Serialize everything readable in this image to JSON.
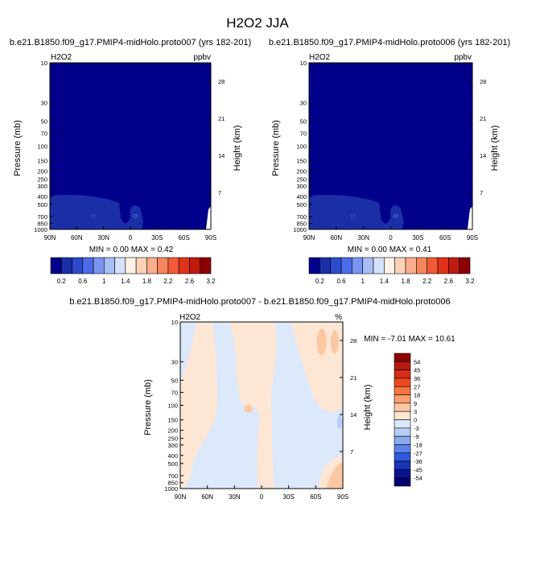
{
  "page_title": "H2O2 JJA",
  "chart_data": [
    {
      "type": "heatmap",
      "title": "b.e21.B1850.f09_g17.PMIP4-midHolo.proto007 (yrs 182-201)",
      "variable": "H2O2",
      "units": "ppbv",
      "xlabel": "",
      "ylabel": "Pressure (mb)",
      "ylabel_right": "Height (km)",
      "x_ticks": [
        "90N",
        "60N",
        "30N",
        "0",
        "30S",
        "60S",
        "90S"
      ],
      "y_ticks": [
        "10",
        "30",
        "50",
        "70",
        "100",
        "150",
        "200",
        "250",
        "300",
        "400",
        "500",
        "700",
        "850",
        "1000"
      ],
      "y_right_ticks": [
        "28",
        "21",
        "14",
        "7"
      ],
      "ylim": [
        1000,
        10
      ],
      "y_scale": "log",
      "stats": "MIN =   0.00   MAX =   0.42",
      "min": 0.0,
      "max": 0.42,
      "colorbar": {
        "labels": [
          "0.2",
          "0.6",
          "1",
          "1.4",
          "1.8",
          "2.2",
          "2.6",
          "3.2"
        ],
        "colors": [
          "#00008b",
          "#1a2fa6",
          "#2b4bcc",
          "#4d6be8",
          "#7a95f0",
          "#a8bff5",
          "#d4e2fa",
          "#fff2e6",
          "#fcd2b8",
          "#fbae8a",
          "#f7865e",
          "#f25a35",
          "#e0321a",
          "#c01a0e",
          "#8b0000"
        ]
      }
    },
    {
      "type": "heatmap",
      "title": "b.e21.B1850.f09_g17.PMIP4-midHolo.proto006 (yrs 182-201)",
      "variable": "H2O2",
      "units": "ppbv",
      "xlabel": "",
      "ylabel": "Pressure (mb)",
      "ylabel_right": "Height (km)",
      "x_ticks": [
        "90N",
        "60N",
        "30N",
        "0",
        "30S",
        "60S",
        "90S"
      ],
      "y_ticks": [
        "10",
        "30",
        "50",
        "70",
        "100",
        "150",
        "200",
        "250",
        "300",
        "400",
        "500",
        "700",
        "850",
        "1000"
      ],
      "y_right_ticks": [
        "28",
        "21",
        "14",
        "7"
      ],
      "ylim": [
        1000,
        10
      ],
      "y_scale": "log",
      "stats": "MIN =   0.00   MAX =   0.41",
      "min": 0.0,
      "max": 0.41,
      "colorbar": {
        "labels": [
          "0.2",
          "0.6",
          "1",
          "1.4",
          "1.8",
          "2.2",
          "2.6",
          "3.2"
        ],
        "colors": [
          "#00008b",
          "#1a2fa6",
          "#2b4bcc",
          "#4d6be8",
          "#7a95f0",
          "#a8bff5",
          "#d4e2fa",
          "#fff2e6",
          "#fcd2b8",
          "#fbae8a",
          "#f7865e",
          "#f25a35",
          "#e0321a",
          "#c01a0e",
          "#8b0000"
        ]
      }
    },
    {
      "type": "heatmap",
      "title": "b.e21.B1850.f09_g17.PMIP4-midHolo.proto007 - b.e21.B1850.f09_g17.PMIP4-midHolo.proto006",
      "variable": "H2O2",
      "units": "%",
      "xlabel": "",
      "ylabel": "Pressure (mb)",
      "ylabel_right": "Height (km)",
      "x_ticks": [
        "90N",
        "60N",
        "30N",
        "0",
        "30S",
        "60S",
        "90S"
      ],
      "y_ticks": [
        "10",
        "30",
        "50",
        "70",
        "100",
        "150",
        "200",
        "250",
        "300",
        "400",
        "500",
        "700",
        "850",
        "1000"
      ],
      "y_right_ticks": [
        "28",
        "21",
        "14",
        "7"
      ],
      "ylim": [
        1000,
        10
      ],
      "y_scale": "log",
      "stats": "MIN =  -7.01   MAX =  10.61",
      "min": -7.01,
      "max": 10.61,
      "colorbar": {
        "labels": [
          "54",
          "45",
          "36",
          "27",
          "18",
          "9",
          "3",
          "0",
          "-3",
          "-9",
          "-18",
          "-27",
          "-36",
          "-45",
          "-54"
        ],
        "colors": [
          "#8b0000",
          "#b51a0f",
          "#d42e14",
          "#ee4a1f",
          "#f9743f",
          "#fb9e70",
          "#fcc7a3",
          "#fde6d4",
          "#dce9fb",
          "#b7cdf5",
          "#8aaaf0",
          "#5b82ea",
          "#2f58dc",
          "#1a34b8",
          "#0b1490",
          "#00006e"
        ]
      }
    }
  ]
}
